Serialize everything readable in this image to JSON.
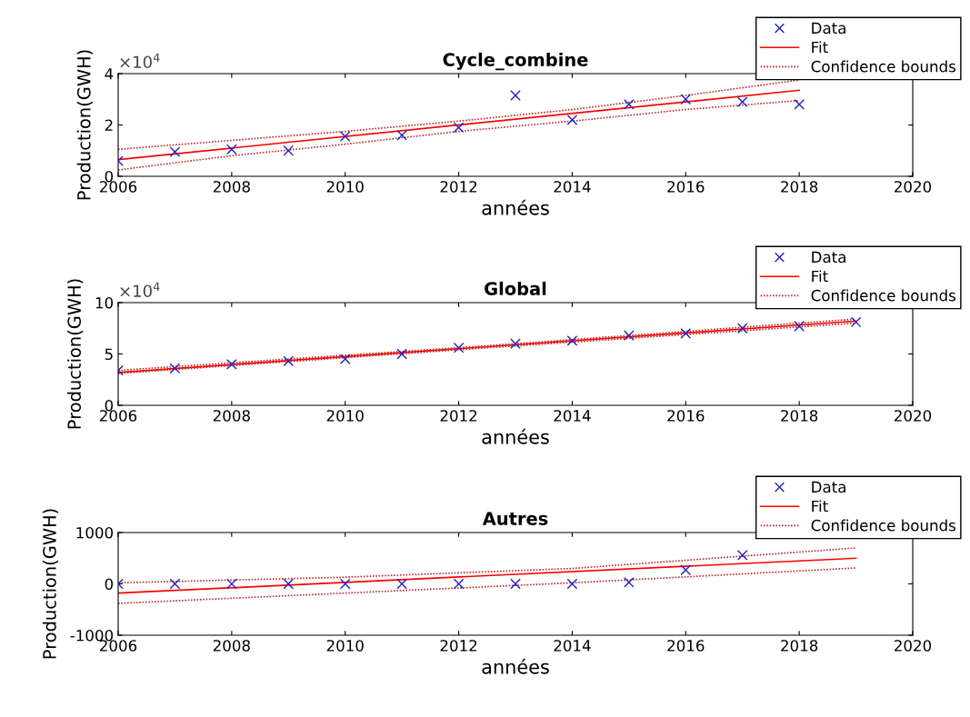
{
  "chart_data": [
    {
      "type": "line",
      "title": "Cycle_combine",
      "xlabel": "années",
      "ylabel": "Production(GWH)",
      "legend": "top right",
      "grid": false,
      "xlim": [
        2006,
        2020
      ],
      "xticks": [
        2006,
        2008,
        2010,
        2012,
        2014,
        2016,
        2018,
        2020
      ],
      "ylim": [
        0,
        4
      ],
      "yticks": [
        0,
        2,
        4
      ],
      "annotations": [
        "×10$^{4}$"
      ],
      "series": [
        {
          "name": "Data",
          "type": "scatter",
          "marker": "cross",
          "color": "#2020c0",
          "x": [
            2006,
            2007,
            2008,
            2009,
            2010,
            2011,
            2012,
            2013,
            2014,
            2015,
            2016,
            2017,
            2018
          ],
          "values": [
            0.6,
            0.95,
            1.05,
            1.0,
            1.55,
            1.6,
            1.9,
            3.15,
            2.2,
            2.8,
            3.0,
            2.9,
            2.8
          ]
        },
        {
          "name": "Fit",
          "line_style": "solid",
          "color": "#ff0000",
          "x": [
            2006,
            2018
          ],
          "values": [
            0.65,
            3.35
          ]
        },
        {
          "name": "Confidence bounds",
          "line_style": "dotted",
          "color": "#c03030",
          "x": [
            2006,
            2008,
            2010,
            2012,
            2014,
            2016,
            2018
          ],
          "values": [
            1.05,
            1.4,
            1.75,
            2.15,
            2.6,
            3.15,
            3.75
          ]
        },
        {
          "line_style": "dotted",
          "color": "#c03030",
          "x": [
            2006,
            2008,
            2010,
            2012,
            2014,
            2016,
            2018
          ],
          "values": [
            0.25,
            0.8,
            1.25,
            1.75,
            2.15,
            2.6,
            2.95
          ]
        }
      ]
    },
    {
      "type": "line",
      "title": "Global",
      "xlabel": "années",
      "ylabel": "Production(GWH)",
      "legend": "top right",
      "grid": false,
      "xlim": [
        2006,
        2020
      ],
      "xticks": [
        2006,
        2008,
        2010,
        2012,
        2014,
        2016,
        2018,
        2020
      ],
      "ylim": [
        0,
        10
      ],
      "yticks": [
        0,
        5,
        10
      ],
      "annotations": [
        "×10$^{4}$"
      ],
      "series": [
        {
          "name": "Data",
          "type": "scatter",
          "marker": "cross",
          "color": "#2020c0",
          "x": [
            2006,
            2007,
            2008,
            2009,
            2010,
            2011,
            2012,
            2013,
            2014,
            2015,
            2016,
            2017,
            2018,
            2019
          ],
          "values": [
            3.4,
            3.6,
            4.0,
            4.3,
            4.5,
            5.0,
            5.6,
            6.0,
            6.3,
            6.8,
            7.0,
            7.5,
            7.7,
            8.1
          ]
        },
        {
          "name": "Fit",
          "line_style": "solid",
          "color": "#ff0000",
          "x": [
            2006,
            2019
          ],
          "values": [
            3.2,
            8.2
          ]
        },
        {
          "name": "Confidence bounds",
          "line_style": "dotted",
          "color": "#c03030",
          "x": [
            2006,
            2012.5,
            2019
          ],
          "values": [
            3.4,
            5.8,
            8.4
          ]
        },
        {
          "line_style": "dotted",
          "color": "#c03030",
          "x": [
            2006,
            2012.5,
            2019
          ],
          "values": [
            3.1,
            5.6,
            8.0
          ]
        }
      ]
    },
    {
      "type": "line",
      "title": "Autres",
      "xlabel": "années",
      "ylabel": "Production(GWH)",
      "legend": "top right",
      "grid": false,
      "xlim": [
        2006,
        2020
      ],
      "xticks": [
        2006,
        2008,
        2010,
        2012,
        2014,
        2016,
        2018,
        2020
      ],
      "ylim": [
        -1000,
        1000
      ],
      "yticks": [
        -1000,
        0,
        1000
      ],
      "series": [
        {
          "name": "Data",
          "type": "scatter",
          "marker": "cross",
          "color": "#2020c0",
          "x": [
            2006,
            2007,
            2008,
            2009,
            2010,
            2011,
            2012,
            2013,
            2014,
            2015,
            2016,
            2017
          ],
          "values": [
            0,
            0,
            0,
            0,
            0,
            0,
            0,
            0,
            0,
            30,
            270,
            560
          ]
        },
        {
          "name": "Fit",
          "line_style": "solid",
          "color": "#ff0000",
          "x": [
            2006,
            2019
          ],
          "values": [
            -180,
            500
          ]
        },
        {
          "name": "Confidence bounds",
          "line_style": "dotted",
          "color": "#c03030",
          "x": [
            2006,
            2010,
            2014,
            2019
          ],
          "values": [
            20,
            130,
            300,
            700
          ]
        },
        {
          "line_style": "dotted",
          "color": "#c03030",
          "x": [
            2006,
            2010,
            2014,
            2019
          ],
          "values": [
            -380,
            -180,
            20,
            310
          ]
        }
      ]
    }
  ]
}
